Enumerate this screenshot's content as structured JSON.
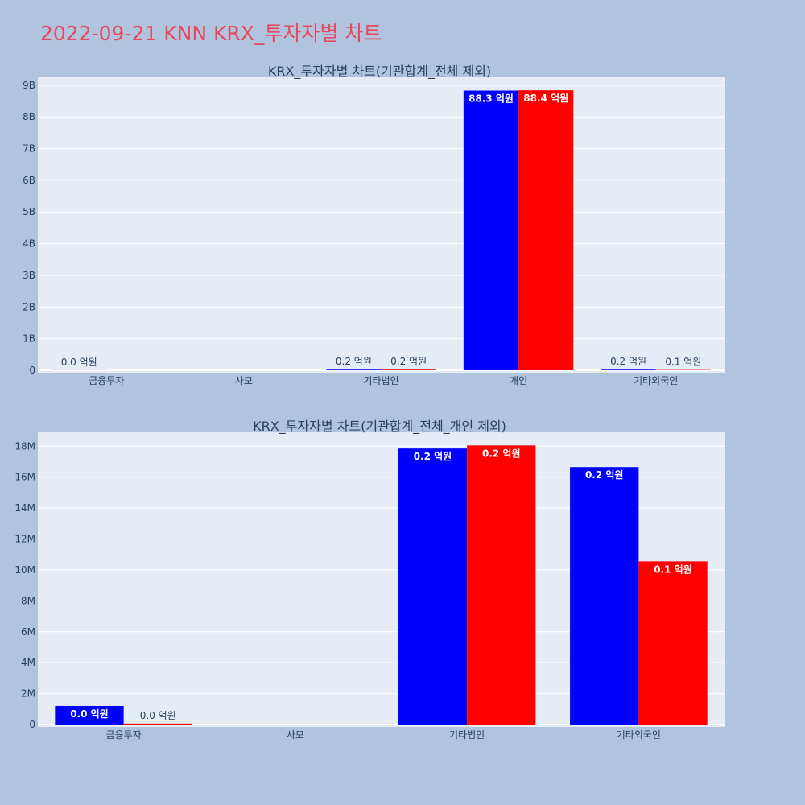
{
  "page": {
    "title": "2022-09-21 KNN KRX_투자자별 차트"
  },
  "chart_data": [
    {
      "type": "bar",
      "title": "KRX_투자자별 차트(기관합계_전체 제외)",
      "categories": [
        "금융투자",
        "사모",
        "기타법인",
        "개인",
        "기타외국인"
      ],
      "series": [
        {
          "color": "#0000ff",
          "values": [
            3000000,
            0,
            20000000,
            8830000000,
            20000000
          ],
          "labels": [
            "0.0 억원",
            "",
            "0.2 억원",
            "88.3 억원",
            "0.2 억원"
          ]
        },
        {
          "color": "#ff0000",
          "values": [
            0,
            0,
            20000000,
            8840000000,
            10000000
          ],
          "labels": [
            "",
            "",
            "0.2 억원",
            "88.4 억원",
            "0.1 억원"
          ]
        }
      ],
      "ylim": [
        0,
        9250000000
      ],
      "yticks": [
        0,
        1000000000,
        2000000000,
        3000000000,
        4000000000,
        5000000000,
        6000000000,
        7000000000,
        8000000000,
        9000000000
      ],
      "ytick_labels": [
        "0",
        "1B",
        "2B",
        "3B",
        "4B",
        "5B",
        "6B",
        "7B",
        "8B",
        "9B"
      ],
      "grid": true,
      "barmode": "group"
    },
    {
      "type": "bar",
      "title": "KRX_투자자별 차트(기관합계_전체_개인 제외)",
      "categories": [
        "금융투자",
        "사모",
        "기타법인",
        "기타외국인"
      ],
      "series": [
        {
          "color": "#0000ff",
          "values": [
            1200000,
            0,
            17850000,
            16650000
          ],
          "labels": [
            "0.0 억원",
            "",
            "0.2 억원",
            "0.2 억원"
          ]
        },
        {
          "color": "#ff0000",
          "values": [
            60000,
            0,
            18050000,
            10550000
          ],
          "labels": [
            "0.0 억원",
            "",
            "0.2 억원",
            "0.1 억원"
          ]
        }
      ],
      "ylim": [
        0,
        18900000
      ],
      "yticks": [
        0,
        2000000,
        4000000,
        6000000,
        8000000,
        10000000,
        12000000,
        14000000,
        16000000,
        18000000
      ],
      "ytick_labels": [
        "0",
        "2M",
        "4M",
        "6M",
        "8M",
        "10M",
        "12M",
        "14M",
        "16M",
        "18M"
      ],
      "grid": true,
      "barmode": "group"
    }
  ]
}
